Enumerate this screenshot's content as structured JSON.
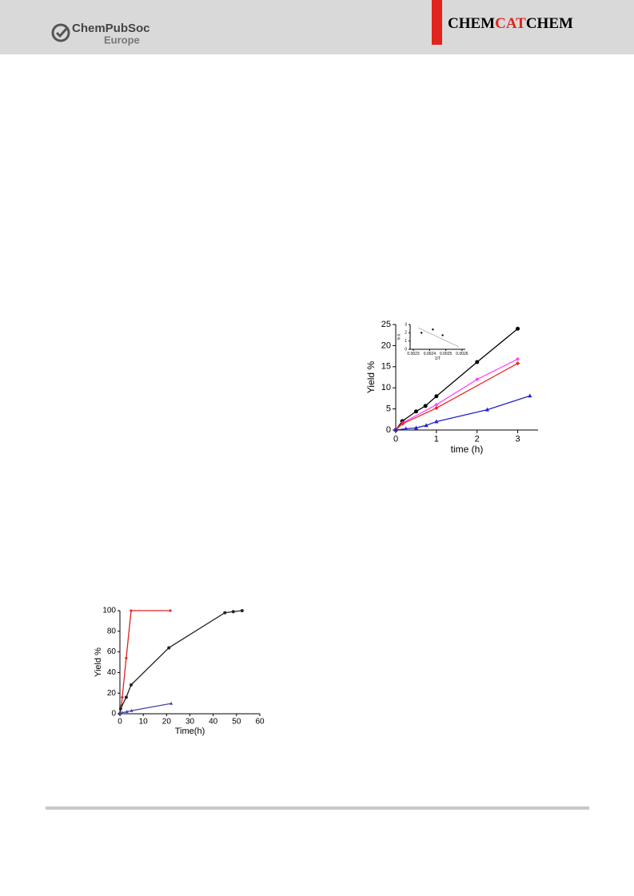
{
  "header": {
    "publisher": "ChemPubSoc",
    "publisher_sub": "Europe",
    "journal": [
      "CHEM",
      "CAT",
      "CHEM"
    ]
  },
  "chart_data": [
    {
      "type": "line",
      "xlabel": "time (h)",
      "ylabel": "Yield %",
      "xlim": [
        0,
        3.5
      ],
      "xticks": [
        0,
        1,
        2,
        3
      ],
      "ylim": [
        0,
        25
      ],
      "yticks": [
        0,
        5,
        10,
        15,
        20,
        25
      ],
      "series": [
        {
          "color": "#000000",
          "marker": "circle",
          "x": [
            0,
            0.16,
            0.5,
            0.73,
            1,
            2,
            3
          ],
          "values": [
            0,
            2.1,
            4.4,
            5.7,
            8,
            16.1,
            24
          ]
        },
        {
          "color": "#ff44ff",
          "marker": "diamond",
          "x": [
            0,
            0.17,
            1,
            2,
            3
          ],
          "values": [
            0,
            1.7,
            6,
            12,
            16.8
          ]
        },
        {
          "color": "#ee2222",
          "marker": "diamond",
          "x": [
            0,
            0.17,
            1,
            3
          ],
          "values": [
            0,
            1.5,
            5.2,
            15.8
          ]
        },
        {
          "color": "#2222cc",
          "marker": "triangle",
          "x": [
            0,
            0.25,
            0.5,
            0.75,
            1,
            2.25,
            3.3
          ],
          "values": [
            0,
            0.3,
            0.5,
            1.1,
            2,
            4.8,
            8.1
          ]
        }
      ]
    },
    {
      "type": "line",
      "xlabel": "Time(h)",
      "ylabel": "Yield %",
      "xlim": [
        0,
        60
      ],
      "xticks": [
        0,
        10,
        20,
        30,
        40,
        50,
        60
      ],
      "ylim": [
        0,
        100
      ],
      "yticks": [
        0,
        20,
        40,
        60,
        80,
        100
      ],
      "series": [
        {
          "color": "#dd2222",
          "marker": "diamond",
          "x": [
            0,
            0.7,
            1,
            2.7,
            4.8,
            21.6
          ],
          "values": [
            0,
            8,
            16,
            54,
            100,
            100
          ]
        },
        {
          "color": "#222222",
          "marker": "circle",
          "x": [
            0,
            0.3,
            2.7,
            4.8,
            21,
            45,
            48.6,
            52.4
          ],
          "values": [
            0,
            5,
            16,
            28,
            64,
            98,
            99,
            100
          ]
        },
        {
          "color": "#4444aa",
          "marker": "triangle",
          "x": [
            0,
            1,
            3,
            5,
            22
          ],
          "values": [
            0,
            1,
            2,
            3,
            10
          ]
        }
      ]
    },
    {
      "type": "scatter",
      "xlabel": "1/T",
      "ylabel": "ln k",
      "xlim": [
        0.00228,
        0.00262
      ],
      "xticks": [
        0.0023,
        0.0024,
        0.0025,
        0.0026
      ],
      "ylim": [
        0,
        3
      ],
      "yticks": [
        0,
        1,
        2,
        3
      ],
      "series": [
        {
          "color": "#000000",
          "marker": "circle",
          "x": [
            0.00235,
            0.00242,
            0.00248
          ],
          "values": [
            2,
            2.4,
            1.7
          ]
        },
        {
          "color": "#888888",
          "marker": "none",
          "x": [
            0.00233,
            0.00258
          ],
          "values": [
            2.6,
            0.3
          ]
        }
      ]
    }
  ]
}
